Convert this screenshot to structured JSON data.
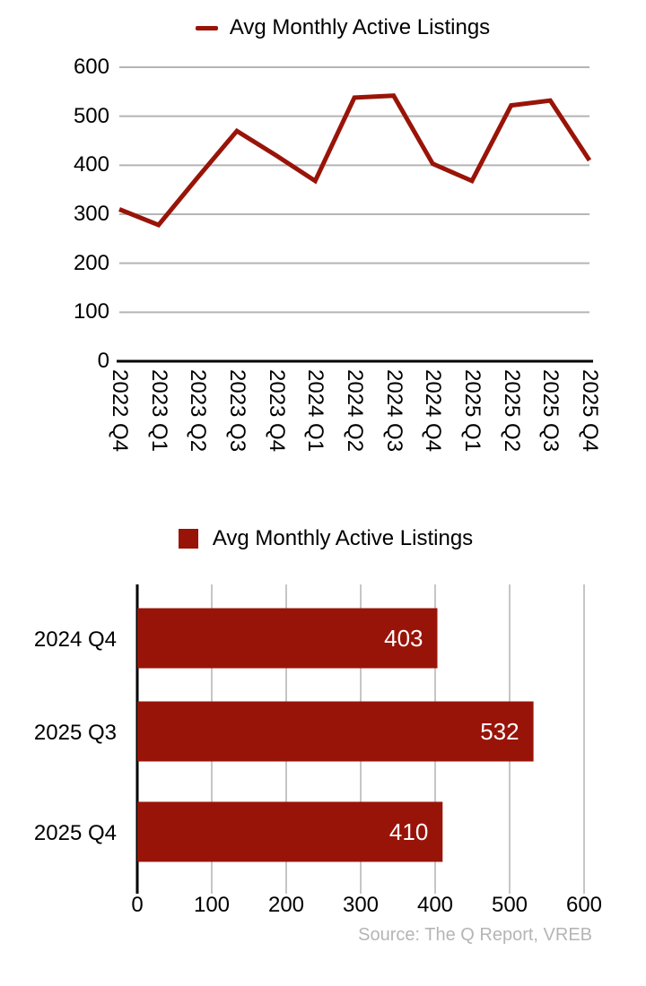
{
  "source_note": "Source: The Q Report, VREB",
  "colors": {
    "series": "#991408",
    "line_grid": "#b5b5b5",
    "bar_grid": "#c6c6c6",
    "axis": "#000000",
    "bar_value_text": "#ffffff",
    "source_text": "#b5b5b5"
  },
  "chart_data": [
    {
      "type": "line",
      "legend": "Avg Monthly Active Listings",
      "legend_position": "top",
      "categories": [
        "2022 Q4",
        "2023 Q1",
        "2023 Q2",
        "2023 Q3",
        "2023 Q4",
        "2024 Q1",
        "2024 Q2",
        "2024 Q3",
        "2024 Q4",
        "2025 Q1",
        "2025 Q2",
        "2025 Q3",
        "2025 Q4"
      ],
      "values": [
        310,
        278,
        375,
        470,
        420,
        368,
        538,
        542,
        403,
        368,
        522,
        532,
        410
      ],
      "ylim": [
        0,
        600
      ],
      "yticks": [
        0,
        100,
        200,
        300,
        400,
        500,
        600
      ],
      "grid": "horizontal",
      "x_tick_rotation": 90
    },
    {
      "type": "bar",
      "orientation": "horizontal",
      "legend": "Avg Monthly Active Listings",
      "legend_position": "top",
      "categories": [
        "2024 Q4",
        "2025 Q3",
        "2025 Q4"
      ],
      "values": [
        403,
        532,
        410
      ],
      "bar_labels": [
        "403",
        "532",
        "410"
      ],
      "xlim": [
        0,
        600
      ],
      "xticks": [
        0,
        100,
        200,
        300,
        400,
        500,
        600
      ],
      "grid": "vertical"
    }
  ]
}
